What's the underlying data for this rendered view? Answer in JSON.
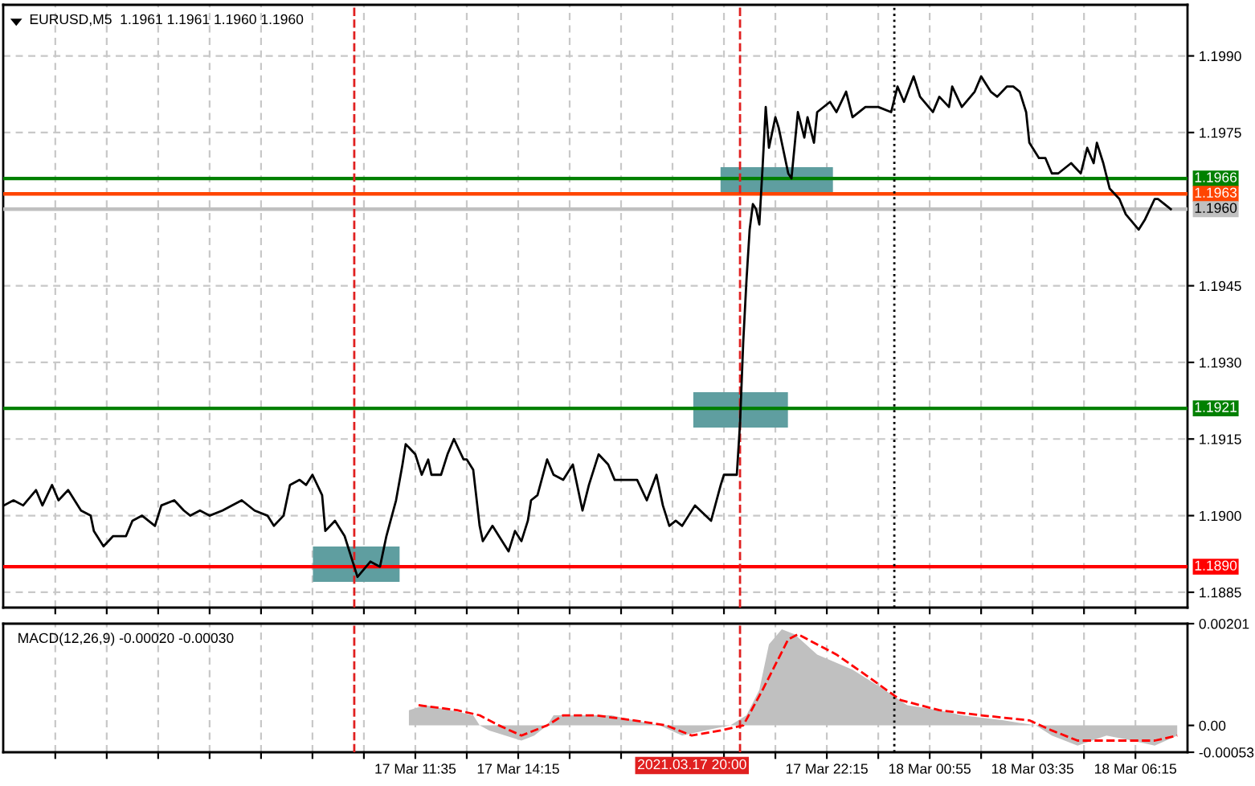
{
  "chart_data": [
    {
      "type": "line",
      "title": "EURUSD,M5  1.1961 1.1961 1.1960 1.1960",
      "tick_labels": "y",
      "grid": true,
      "xlim": [
        "2021-03-17T00:54",
        "2021-03-18T07:36"
      ],
      "ylim": [
        1.1882,
        1.2
      ],
      "xticks": [
        {
          "value": "2021-03-17T02:15",
          "label": null
        },
        {
          "value": "2021-03-17T03:35",
          "label": null
        },
        {
          "value": "2021-03-17T04:55",
          "label": null
        },
        {
          "value": "2021-03-17T06:15",
          "label": null
        },
        {
          "value": "2021-03-17T07:35",
          "label": null
        },
        {
          "value": "2021-03-17T08:55",
          "label": null
        },
        {
          "value": "2021-03-17T10:15",
          "label": null
        },
        {
          "value": "2021-03-17T11:35",
          "label": null
        },
        {
          "value": "2021-03-17T12:55",
          "label": null
        },
        {
          "value": "2021-03-17T14:15",
          "label": null
        },
        {
          "value": "2021-03-17T15:35",
          "label": null
        },
        {
          "value": "2021-03-17T16:55",
          "label": null
        },
        {
          "value": "2021-03-17T18:15",
          "label": null
        },
        {
          "value": "2021-03-17T19:35",
          "label": null
        },
        {
          "value": "2021-03-17T20:55",
          "label": null
        },
        {
          "value": "2021-03-17T22:15",
          "label": null
        },
        {
          "value": "2021-03-17T23:35",
          "label": null
        },
        {
          "value": "2021-03-18T00:55",
          "label": null
        },
        {
          "value": "2021-03-18T02:15",
          "label": null
        },
        {
          "value": "2021-03-18T03:35",
          "label": null
        },
        {
          "value": "2021-03-18T04:55",
          "label": null
        },
        {
          "value": "2021-03-18T06:15",
          "label": null
        }
      ],
      "yticks": [
        1.1885,
        {
          "value": 1.19,
          "label": "1.1900"
        },
        1.1915,
        {
          "value": 1.193,
          "label": "1.1930"
        },
        1.1945,
        1.1975,
        {
          "value": 1.199,
          "label": "1.1990"
        }
      ],
      "ref_lines": [
        {
          "axis": "y",
          "value": 1.1966,
          "label": "1.1966",
          "color": "#008000"
        },
        {
          "axis": "y",
          "value": 1.1963,
          "label": "1.1963",
          "color": "#ff4500"
        },
        {
          "axis": "y",
          "value": 1.196,
          "label": "1.1960",
          "color": "#c0c0c0"
        },
        {
          "axis": "y",
          "value": 1.1921,
          "label": "1.1921",
          "color": "#008000"
        },
        {
          "axis": "y",
          "value": 1.189,
          "label": "1.1890",
          "color": "#ff0000"
        },
        {
          "axis": "x",
          "value": "2021-03-17T10:00",
          "color": "#e02020",
          "line_style": "dashed"
        },
        {
          "axis": "x",
          "value": "2021-03-17T20:00",
          "color": "#e02020",
          "line_style": "dashed"
        },
        {
          "axis": "x",
          "value": "2021-03-18T00:00",
          "color": "#000000",
          "line_style": "dotted"
        }
      ],
      "series": [
        {
          "color": "#000000",
          "x": [
            "2021-03-17T00:55",
            "2021-03-17T01:10",
            "2021-03-17T01:25",
            "2021-03-17T01:45",
            "2021-03-17T01:55",
            "2021-03-17T02:10",
            "2021-03-17T02:20",
            "2021-03-17T02:35",
            "2021-03-17T02:55",
            "2021-03-17T03:10",
            "2021-03-17T03:15",
            "2021-03-17T03:30",
            "2021-03-17T03:45",
            "2021-03-17T04:05",
            "2021-03-17T04:15",
            "2021-03-17T04:30",
            "2021-03-17T04:50",
            "2021-03-17T05:00",
            "2021-03-17T05:20",
            "2021-03-17T05:35",
            "2021-03-17T05:45",
            "2021-03-17T06:00",
            "2021-03-17T06:15",
            "2021-03-17T06:35",
            "2021-03-17T07:05",
            "2021-03-17T07:25",
            "2021-03-17T07:45",
            "2021-03-17T07:55",
            "2021-03-17T08:10",
            "2021-03-17T08:20",
            "2021-03-17T08:35",
            "2021-03-17T08:45",
            "2021-03-17T08:55",
            "2021-03-17T09:10",
            "2021-03-17T09:15",
            "2021-03-17T09:30",
            "2021-03-17T09:45",
            "2021-03-17T10:00",
            "2021-03-17T10:05",
            "2021-03-17T10:25",
            "2021-03-17T10:40",
            "2021-03-17T10:50",
            "2021-03-17T11:05",
            "2021-03-17T11:15",
            "2021-03-17T11:20",
            "2021-03-17T11:35",
            "2021-03-17T11:45",
            "2021-03-17T11:55",
            "2021-03-17T12:00",
            "2021-03-17T12:15",
            "2021-03-17T12:25",
            "2021-03-17T12:35",
            "2021-03-17T12:50",
            "2021-03-17T12:55",
            "2021-03-17T13:05",
            "2021-03-17T13:15",
            "2021-03-17T13:20",
            "2021-03-17T13:35",
            "2021-03-17T13:45",
            "2021-03-17T14:00",
            "2021-03-17T14:10",
            "2021-03-17T14:20",
            "2021-03-17T14:30",
            "2021-03-17T14:35",
            "2021-03-17T14:45",
            "2021-03-17T15:00",
            "2021-03-17T15:10",
            "2021-03-17T15:25",
            "2021-03-17T15:40",
            "2021-03-17T15:55",
            "2021-03-17T16:05",
            "2021-03-17T16:20",
            "2021-03-17T16:35",
            "2021-03-17T16:45",
            "2021-03-17T17:00",
            "2021-03-17T17:20",
            "2021-03-17T17:35",
            "2021-03-17T17:50",
            "2021-03-17T18:00",
            "2021-03-17T18:10",
            "2021-03-17T18:20",
            "2021-03-17T18:30",
            "2021-03-17T18:50",
            "2021-03-17T19:15",
            "2021-03-17T19:30",
            "2021-03-17T19:35",
            "2021-03-17T19:55",
            "2021-03-17T20:00",
            "2021-03-17T20:05",
            "2021-03-17T20:10",
            "2021-03-17T20:15",
            "2021-03-17T20:20",
            "2021-03-17T20:25",
            "2021-03-17T20:30",
            "2021-03-17T20:35",
            "2021-03-17T20:40",
            "2021-03-17T20:45",
            "2021-03-17T20:55",
            "2021-03-17T21:00",
            "2021-03-17T21:15",
            "2021-03-17T21:20",
            "2021-03-17T21:30",
            "2021-03-17T21:40",
            "2021-03-17T21:45",
            "2021-03-17T21:55",
            "2021-03-17T22:00",
            "2021-03-17T22:20",
            "2021-03-17T22:30",
            "2021-03-17T22:45",
            "2021-03-17T22:55",
            "2021-03-17T23:15",
            "2021-03-17T23:35",
            "2021-03-17T23:55",
            "2021-03-18T00:05",
            "2021-03-18T00:15",
            "2021-03-18T00:30",
            "2021-03-18T00:40",
            "2021-03-18T01:00",
            "2021-03-18T01:10",
            "2021-03-18T01:25",
            "2021-03-18T01:30",
            "2021-03-18T01:45",
            "2021-03-18T02:05",
            "2021-03-18T02:15",
            "2021-03-18T02:30",
            "2021-03-18T02:40",
            "2021-03-18T02:55",
            "2021-03-18T03:05",
            "2021-03-18T03:15",
            "2021-03-18T03:25",
            "2021-03-18T03:30",
            "2021-03-18T03:45",
            "2021-03-18T03:55",
            "2021-03-18T04:05",
            "2021-03-18T04:15",
            "2021-03-18T04:35",
            "2021-03-18T04:50",
            "2021-03-18T05:00",
            "2021-03-18T05:10",
            "2021-03-18T05:15",
            "2021-03-18T05:25",
            "2021-03-18T05:35",
            "2021-03-18T05:50",
            "2021-03-18T06:00",
            "2021-03-18T06:20",
            "2021-03-18T06:30",
            "2021-03-18T06:45",
            "2021-03-18T06:50",
            "2021-03-18T07:00",
            "2021-03-18T07:10"
          ],
          "values": [
            1.1902,
            1.1903,
            1.1902,
            1.1905,
            1.1902,
            1.1906,
            1.1903,
            1.1905,
            1.1901,
            1.19,
            1.1897,
            1.1894,
            1.1896,
            1.1896,
            1.1899,
            1.19,
            1.1898,
            1.1902,
            1.1903,
            1.1901,
            1.19,
            1.1901,
            1.19,
            1.1901,
            1.1903,
            1.1901,
            1.19,
            1.1898,
            1.19,
            1.1906,
            1.1907,
            1.1906,
            1.1908,
            1.1904,
            1.1897,
            1.1899,
            1.1896,
            1.189,
            1.1888,
            1.1891,
            1.189,
            1.1896,
            1.1903,
            1.191,
            1.1914,
            1.1912,
            1.1908,
            1.1911,
            1.1908,
            1.1908,
            1.1912,
            1.1915,
            1.1911,
            1.1911,
            1.1909,
            1.1898,
            1.1895,
            1.1898,
            1.1896,
            1.1893,
            1.1897,
            1.1895,
            1.1899,
            1.1903,
            1.1904,
            1.1911,
            1.1908,
            1.1907,
            1.191,
            1.1901,
            1.1906,
            1.1912,
            1.191,
            1.1907,
            1.1907,
            1.1907,
            1.1903,
            1.1908,
            1.1902,
            1.1898,
            1.1899,
            1.1898,
            1.1902,
            1.1899,
            1.1906,
            1.1908,
            1.1908,
            1.1918,
            1.1934,
            1.1946,
            1.1956,
            1.1961,
            1.196,
            1.1957,
            1.1968,
            1.198,
            1.1972,
            1.1978,
            1.1976,
            1.1967,
            1.1966,
            1.1979,
            1.1974,
            1.1978,
            1.1973,
            1.1979,
            1.1981,
            1.1979,
            1.1983,
            1.1978,
            1.198,
            1.198,
            1.1979,
            1.1984,
            1.1981,
            1.1986,
            1.1982,
            1.1979,
            1.1982,
            1.198,
            1.1984,
            1.198,
            1.1983,
            1.1986,
            1.1983,
            1.1982,
            1.1984,
            1.1984,
            1.1983,
            1.1979,
            1.1973,
            1.197,
            1.197,
            1.1967,
            1.1967,
            1.1969,
            1.1967,
            1.1972,
            1.1969,
            1.1973,
            1.1969,
            1.1964,
            1.1962,
            1.1959,
            1.1956,
            1.1958,
            1.1962,
            1.1962,
            1.1961,
            1.196
          ]
        }
      ]
    },
    {
      "type": "line",
      "title": "MACD(12,26,9) -0.00020 -0.00030",
      "grid": "x",
      "xlim": [
        "2021-03-17T00:54",
        "2021-03-18T07:36"
      ],
      "ylim": [
        -0.00053,
        0.00201
      ],
      "xticks": [
        {
          "value": "2021-03-17T02:15",
          "label": null
        },
        {
          "value": "2021-03-17T03:35",
          "label": null
        },
        {
          "value": "2021-03-17T04:55",
          "label": null
        },
        {
          "value": "2021-03-17T06:15",
          "label": null
        },
        {
          "value": "2021-03-17T07:35",
          "label": null
        },
        {
          "value": "2021-03-17T08:55",
          "label": null
        },
        {
          "value": "2021-03-17T10:15",
          "label": null
        },
        {
          "value": "2021-03-17T11:35",
          "label": "17 Mar 11:35"
        },
        {
          "value": "2021-03-17T12:55",
          "label": null
        },
        {
          "value": "2021-03-17T14:15",
          "label": "17 Mar 14:15"
        },
        {
          "value": "2021-03-17T15:35",
          "label": null
        },
        {
          "value": "2021-03-17T16:55",
          "label": null
        },
        {
          "value": "2021-03-17T18:15",
          "label": null
        },
        {
          "value": "2021-03-17T19:35",
          "label": null
        },
        {
          "value": "2021-03-17T20:55",
          "label": null
        },
        {
          "value": "2021-03-17T22:15",
          "label": "17 Mar 22:15"
        },
        {
          "value": "2021-03-17T23:35",
          "label": null
        },
        {
          "value": "2021-03-18T00:55",
          "label": "18 Mar 00:55"
        },
        {
          "value": "2021-03-18T02:15",
          "label": null
        },
        {
          "value": "2021-03-18T03:35",
          "label": "18 Mar 03:35"
        },
        {
          "value": "2021-03-18T04:55",
          "label": null
        },
        {
          "value": "2021-03-18T06:15",
          "label": "18 Mar 06:15"
        }
      ],
      "yticks": [
        -0.00053,
        {
          "value": 0,
          "label": "0.00"
        },
        0.00201
      ],
      "ref_lines": [
        {
          "axis": "x",
          "value": "2021-03-17T10:00",
          "color": "#e02020",
          "line_style": "dashed"
        },
        {
          "axis": "x",
          "value": "2021-03-17T20:00",
          "color": "#e02020",
          "line_style": "dashed",
          "label": "2021.03.17 20:00"
        },
        {
          "axis": "x",
          "value": "2021-03-18T00:00",
          "color": "#000000",
          "line_style": "dotted"
        }
      ],
      "series": [
        {
          "type": "area",
          "color": "#c0c0c0",
          "x": [
            "2021-03-17T11:25",
            "2021-03-17T11:50",
            "2021-03-17T12:30",
            "2021-03-17T13:05",
            "2021-03-17T13:15",
            "2021-03-17T13:30",
            "2021-03-17T13:55",
            "2021-03-17T14:20",
            "2021-03-17T14:40",
            "2021-03-17T15:00",
            "2021-03-17T15:10",
            "2021-03-17T15:45",
            "2021-03-17T16:40",
            "2021-03-17T17:15",
            "2021-03-17T17:55",
            "2021-03-17T18:30",
            "2021-03-17T19:05",
            "2021-03-17T19:45",
            "2021-03-17T20:10",
            "2021-03-17T20:30",
            "2021-03-17T20:45",
            "2021-03-17T21:05",
            "2021-03-17T21:25",
            "2021-03-17T22:00",
            "2021-03-17T22:55",
            "2021-03-17T23:45",
            "2021-03-18T00:20",
            "2021-03-18T01:10",
            "2021-03-18T01:45",
            "2021-03-18T02:50",
            "2021-03-18T03:40",
            "2021-03-18T04:05",
            "2021-03-18T04:45",
            "2021-03-18T05:30",
            "2021-03-18T06:10",
            "2021-03-18T06:45",
            "2021-03-18T07:20"
          ],
          "values": [
            0.0003,
            0.0004,
            0.0003,
            0.0002,
            0.0,
            -0.0001,
            -0.0002,
            -0.0003,
            -0.0002,
            0.0,
            0.0002,
            0.0002,
            0.0002,
            0.0001,
            0.0,
            -0.0002,
            -0.0001,
            0.0,
            0.0002,
            0.0007,
            0.0016,
            0.0019,
            0.0018,
            0.0014,
            0.0011,
            0.0007,
            0.0004,
            0.0003,
            0.0002,
            0.0001,
            0.0,
            -0.0002,
            -0.0004,
            -0.0002,
            -0.0003,
            -0.0004,
            -0.0002
          ]
        },
        {
          "type": "line",
          "color": "#ff0000",
          "line_style": "dashed",
          "x": [
            "2021-03-17T11:40",
            "2021-03-17T12:40",
            "2021-03-17T13:15",
            "2021-03-17T13:45",
            "2021-03-17T14:20",
            "2021-03-17T15:00",
            "2021-03-17T15:25",
            "2021-03-17T16:15",
            "2021-03-17T17:15",
            "2021-03-17T18:05",
            "2021-03-17T18:45",
            "2021-03-17T19:30",
            "2021-03-17T20:05",
            "2021-03-17T20:35",
            "2021-03-17T21:15",
            "2021-03-17T21:30",
            "2021-03-17T22:30",
            "2021-03-17T23:15",
            "2021-03-18T00:10",
            "2021-03-18T01:10",
            "2021-03-18T02:15",
            "2021-03-18T03:30",
            "2021-03-18T04:05",
            "2021-03-18T04:45",
            "2021-03-18T05:30",
            "2021-03-18T06:25",
            "2021-03-18T06:45",
            "2021-03-18T07:20"
          ],
          "values": [
            0.0004,
            0.0003,
            0.0002,
            0.0,
            -0.0002,
            0.0,
            0.0002,
            0.0002,
            0.0001,
            0.0,
            -0.0002,
            -0.0001,
            0.0,
            0.0007,
            0.0017,
            0.0018,
            0.0014,
            0.001,
            0.0005,
            0.0003,
            0.0002,
            0.0001,
            -0.0001,
            -0.0003,
            -0.0003,
            -0.0003,
            -0.0003,
            -0.0002
          ]
        }
      ]
    }
  ]
}
